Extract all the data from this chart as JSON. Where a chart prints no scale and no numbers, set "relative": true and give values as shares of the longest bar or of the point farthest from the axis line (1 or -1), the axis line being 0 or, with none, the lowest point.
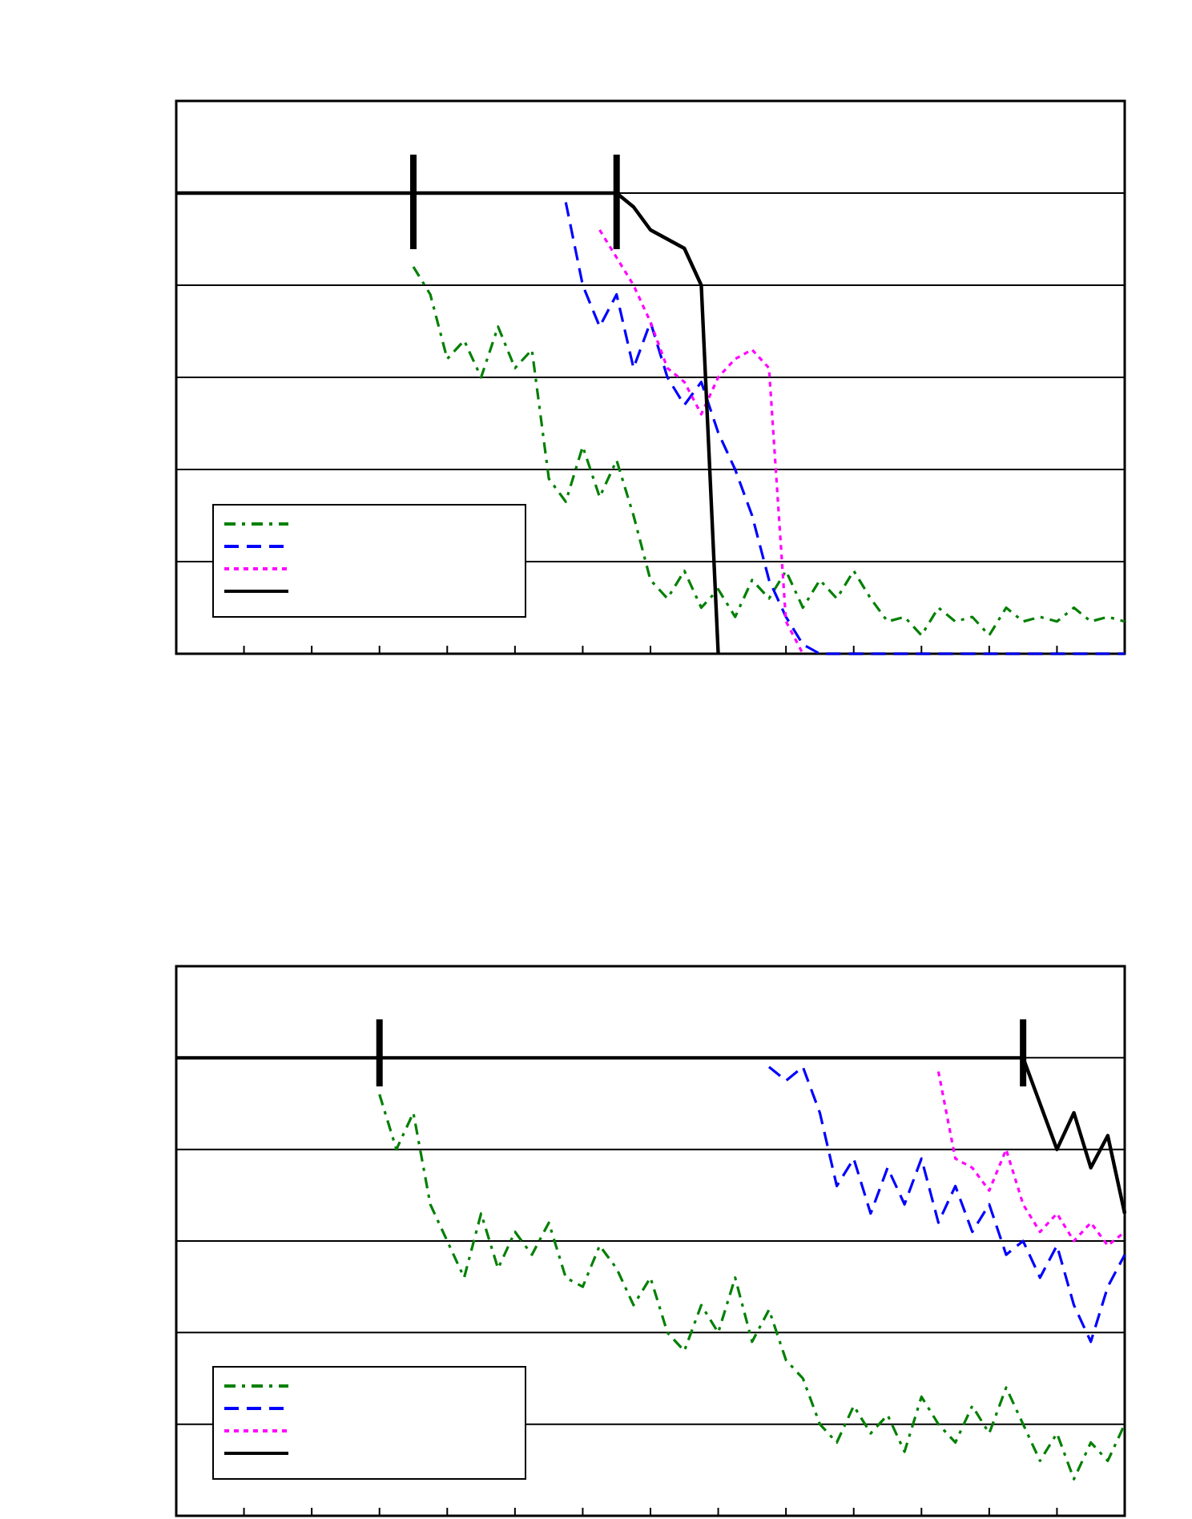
{
  "chart_data": [
    {
      "type": "line",
      "relative": true,
      "grid": "y",
      "categories": [
        null,
        null,
        null,
        null,
        null,
        null,
        null,
        null,
        null,
        null,
        null,
        null,
        null,
        null,
        null,
        null,
        null,
        null,
        null,
        null,
        null,
        null,
        null,
        null,
        null,
        null,
        null,
        null,
        null,
        null,
        null,
        null,
        null,
        null,
        null,
        null,
        null,
        null,
        null,
        null,
        null,
        null,
        null,
        null,
        null,
        null,
        null,
        null,
        null,
        null,
        null,
        null,
        null,
        null,
        null,
        null,
        null
      ],
      "series": [
        {
          "color": "#008000",
          "line_style": "dashdot",
          "values": [
            null,
            null,
            null,
            null,
            null,
            null,
            null,
            null,
            null,
            null,
            null,
            null,
            null,
            null,
            0.84,
            0.78,
            0.64,
            0.68,
            0.6,
            0.71,
            0.62,
            0.66,
            0.38,
            0.33,
            0.45,
            0.34,
            0.42,
            0.3,
            0.16,
            0.12,
            0.18,
            0.1,
            0.14,
            0.08,
            0.16,
            0.12,
            0.18,
            0.1,
            0.16,
            0.12,
            0.18,
            0.12,
            0.07,
            0.08,
            0.04,
            0.1,
            0.07,
            0.08,
            0.04,
            0.1,
            0.07,
            0.08,
            0.07,
            0.1,
            0.07,
            0.08,
            0.07
          ]
        },
        {
          "color": "#0000ff",
          "line_style": "dashed",
          "values": [
            null,
            null,
            null,
            null,
            null,
            null,
            null,
            null,
            null,
            null,
            null,
            null,
            null,
            null,
            null,
            null,
            null,
            null,
            null,
            null,
            null,
            null,
            null,
            0.98,
            0.8,
            0.71,
            0.78,
            0.62,
            0.72,
            0.6,
            0.54,
            0.59,
            0.48,
            0.4,
            0.3,
            0.16,
            0.08,
            0.02,
            0,
            0,
            0,
            0,
            0,
            0,
            0,
            0,
            0,
            0,
            0,
            0,
            0,
            0,
            0,
            0,
            0,
            0,
            0
          ]
        },
        {
          "color": "#ff00ff",
          "line_style": "dotted",
          "values": [
            null,
            null,
            null,
            null,
            null,
            null,
            null,
            null,
            null,
            null,
            null,
            null,
            null,
            null,
            null,
            null,
            null,
            null,
            null,
            null,
            null,
            null,
            null,
            null,
            null,
            0.92,
            0.86,
            0.8,
            0.72,
            0.62,
            0.59,
            0.52,
            0.6,
            0.64,
            0.66,
            0.62,
            0.07,
            0,
            null,
            null,
            null,
            null,
            null,
            null,
            null,
            null,
            null,
            null,
            null,
            null,
            null,
            null,
            null,
            null,
            null,
            null,
            null
          ]
        },
        {
          "color": "#000000",
          "line_style": "solid",
          "values": [
            1,
            1,
            1,
            1,
            1,
            1,
            1,
            1,
            1,
            1,
            1,
            1,
            1,
            1,
            1,
            1,
            1,
            1,
            1,
            1,
            1,
            1,
            1,
            1,
            1,
            1,
            1,
            0.97,
            0.92,
            0.9,
            0.88,
            0.8,
            0,
            null,
            null,
            null,
            null,
            null,
            null,
            null,
            null,
            null,
            null,
            null,
            null,
            null,
            null,
            null,
            null,
            null,
            null,
            null,
            null,
            null,
            null,
            null,
            null
          ]
        }
      ]
    },
    {
      "type": "line",
      "relative": true,
      "grid": "y",
      "categories": [
        null,
        null,
        null,
        null,
        null,
        null,
        null,
        null,
        null,
        null,
        null,
        null,
        null,
        null,
        null,
        null,
        null,
        null,
        null,
        null,
        null,
        null,
        null,
        null,
        null,
        null,
        null,
        null,
        null,
        null,
        null,
        null,
        null,
        null,
        null,
        null,
        null,
        null,
        null,
        null,
        null,
        null,
        null,
        null,
        null,
        null,
        null,
        null,
        null,
        null,
        null,
        null,
        null,
        null,
        null,
        null,
        null
      ],
      "series": [
        {
          "color": "#008000",
          "line_style": "dashdot",
          "values": [
            null,
            null,
            null,
            null,
            null,
            null,
            null,
            null,
            null,
            null,
            null,
            null,
            0.92,
            0.8,
            0.88,
            0.68,
            0.6,
            0.52,
            0.66,
            0.54,
            0.62,
            0.57,
            0.64,
            0.52,
            0.5,
            0.59,
            0.54,
            0.46,
            0.52,
            0.4,
            0.36,
            0.46,
            0.4,
            0.52,
            0.38,
            0.45,
            0.34,
            0.3,
            0.2,
            0.16,
            0.24,
            0.18,
            0.22,
            0.14,
            0.26,
            0.2,
            0.16,
            0.24,
            0.18,
            0.28,
            0.2,
            0.12,
            0.18,
            0.08,
            0.16,
            0.12,
            0.2
          ]
        },
        {
          "color": "#0000ff",
          "line_style": "dashed",
          "values": [
            null,
            null,
            null,
            null,
            null,
            null,
            null,
            null,
            null,
            null,
            null,
            null,
            null,
            null,
            null,
            null,
            null,
            null,
            null,
            null,
            null,
            null,
            null,
            null,
            null,
            null,
            null,
            null,
            null,
            null,
            null,
            null,
            null,
            null,
            null,
            0.98,
            0.95,
            0.98,
            0.88,
            0.72,
            0.78,
            0.66,
            0.76,
            0.68,
            0.78,
            0.64,
            0.72,
            0.62,
            0.68,
            0.57,
            0.6,
            0.52,
            0.59,
            0.46,
            0.38,
            0.5,
            0.57
          ]
        },
        {
          "color": "#ff00ff",
          "line_style": "dotted",
          "values": [
            null,
            null,
            null,
            null,
            null,
            null,
            null,
            null,
            null,
            null,
            null,
            null,
            null,
            null,
            null,
            null,
            null,
            null,
            null,
            null,
            null,
            null,
            null,
            null,
            null,
            null,
            null,
            null,
            null,
            null,
            null,
            null,
            null,
            null,
            null,
            null,
            null,
            null,
            null,
            null,
            null,
            null,
            null,
            null,
            null,
            0.97,
            0.78,
            0.76,
            0.71,
            0.8,
            0.68,
            0.62,
            0.66,
            0.6,
            0.64,
            0.59,
            0.62
          ]
        },
        {
          "color": "#000000",
          "line_style": "solid",
          "values": [
            1,
            1,
            1,
            1,
            1,
            1,
            1,
            1,
            1,
            1,
            1,
            1,
            1,
            1,
            1,
            1,
            1,
            1,
            1,
            1,
            1,
            1,
            1,
            1,
            1,
            1,
            1,
            1,
            1,
            1,
            1,
            1,
            1,
            1,
            1,
            1,
            1,
            1,
            1,
            1,
            1,
            1,
            1,
            1,
            1,
            1,
            1,
            1,
            1,
            1,
            1,
            0.9,
            0.8,
            0.88,
            0.76,
            0.83,
            0.66
          ]
        }
      ]
    }
  ]
}
